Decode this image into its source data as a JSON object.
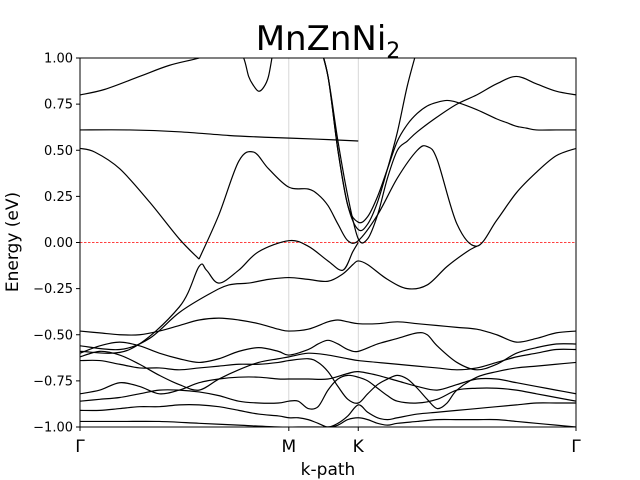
{
  "chart_data": {
    "type": "line",
    "title": "MnZnNi",
    "title_subscript": "2",
    "xlabel": "k-path",
    "ylabel": "Energy (eV)",
    "ylim": [
      -1.0,
      1.0
    ],
    "yticks": [
      -1.0,
      -0.75,
      -0.5,
      -0.25,
      0.0,
      0.25,
      0.5,
      0.75,
      1.0
    ],
    "ytick_labels": [
      "−1.00",
      "−0.75",
      "−0.50",
      "−0.25",
      "0.00",
      "0.25",
      "0.50",
      "0.75",
      "1.00"
    ],
    "xlim": [
      0,
      100
    ],
    "kpoints": [
      {
        "label": "Γ",
        "x": 0
      },
      {
        "label": "M",
        "x": 42.1
      },
      {
        "label": "K",
        "x": 56.1
      },
      {
        "label": "Γ",
        "x": 100
      }
    ],
    "fermi_level": 0.0,
    "fermi_color": "#ff0000",
    "band_color": "#000000",
    "vline_color": "#cccccc",
    "series": [
      {
        "x": [
          0,
          5,
          12,
          18,
          24,
          30,
          34
        ],
        "y": [
          0.8,
          0.83,
          0.9,
          0.96,
          1.0,
          1.05,
          1.1
        ]
      },
      {
        "x": [
          0,
          10,
          20,
          30,
          38,
          48,
          56.1
        ],
        "y": [
          0.61,
          0.61,
          0.6,
          0.58,
          0.57,
          0.56,
          0.55
        ]
      },
      {
        "x": [
          31,
          33,
          34,
          35,
          36,
          37,
          38,
          39
        ],
        "y": [
          1.1,
          1.0,
          0.9,
          0.85,
          0.82,
          0.84,
          0.9,
          1.05
        ]
      },
      {
        "x": [
          0,
          3,
          8,
          14,
          20,
          24
        ],
        "y": [
          0.51,
          0.49,
          0.4,
          0.22,
          0.02,
          -0.09
        ]
      },
      {
        "x": [
          24,
          28,
          32,
          35,
          38,
          42.1,
          46,
          48,
          50,
          52,
          54,
          56.1,
          60,
          64,
          68,
          70,
          72,
          76,
          80,
          84,
          88,
          92,
          96,
          100
        ],
        "y": [
          -0.09,
          0.15,
          0.44,
          0.49,
          0.4,
          0.3,
          0.29,
          0.26,
          0.2,
          0.1,
          0.01,
          0.01,
          0.15,
          0.35,
          0.5,
          0.52,
          0.45,
          0.1,
          -0.02,
          0.12,
          0.27,
          0.38,
          0.47,
          0.51
        ]
      },
      {
        "x": [
          0,
          10,
          20,
          24,
          25.5,
          28,
          32,
          36,
          42.1,
          46,
          50,
          53,
          55,
          56.1
        ],
        "y": [
          -0.59,
          -0.58,
          -0.35,
          -0.13,
          -0.15,
          -0.22,
          -0.15,
          -0.05,
          0.01,
          -0.02,
          -0.1,
          -0.15,
          -0.05,
          0.0
        ]
      },
      {
        "x": [
          0,
          8,
          14,
          20,
          26,
          30,
          34,
          38,
          42.1,
          46,
          50,
          53,
          55,
          56.1,
          58,
          62,
          66,
          70,
          74,
          78,
          80
        ],
        "y": [
          -0.56,
          -0.58,
          -0.52,
          -0.38,
          -0.28,
          -0.23,
          -0.22,
          -0.2,
          -0.19,
          -0.2,
          -0.21,
          -0.17,
          -0.12,
          -0.1,
          -0.12,
          -0.2,
          -0.25,
          -0.23,
          -0.13,
          -0.05,
          -0.02
        ]
      },
      {
        "x": [
          0,
          4,
          8,
          12,
          16,
          20,
          24,
          28,
          32,
          36,
          40,
          42.1,
          46,
          50,
          52,
          54,
          56.1,
          60,
          64,
          68,
          72,
          76,
          80,
          84,
          88,
          92,
          96,
          100
        ],
        "y": [
          -0.48,
          -0.49,
          -0.5,
          -0.5,
          -0.48,
          -0.45,
          -0.42,
          -0.41,
          -0.42,
          -0.44,
          -0.47,
          -0.48,
          -0.47,
          -0.43,
          -0.42,
          -0.43,
          -0.44,
          -0.44,
          -0.43,
          -0.44,
          -0.45,
          -0.46,
          -0.47,
          -0.5,
          -0.54,
          -0.52,
          -0.49,
          -0.48
        ]
      },
      {
        "x": [
          48,
          50,
          52,
          54,
          56.1,
          58,
          60,
          62,
          64,
          66,
          68,
          70,
          72,
          74,
          76,
          80,
          84,
          86,
          88,
          90,
          92,
          96,
          100
        ],
        "y": [
          1.1,
          0.9,
          0.5,
          0.2,
          0.11,
          0.14,
          0.25,
          0.4,
          0.55,
          0.64,
          0.7,
          0.74,
          0.76,
          0.77,
          0.76,
          0.72,
          0.67,
          0.65,
          0.63,
          0.62,
          0.61,
          0.61,
          0.61
        ]
      },
      {
        "x": [
          48,
          50,
          52,
          54,
          56.1,
          58,
          60,
          62,
          64,
          66,
          68
        ],
        "y": [
          1.1,
          0.9,
          0.5,
          0.2,
          0.07,
          0.1,
          0.22,
          0.4,
          0.6,
          0.85,
          1.05
        ]
      },
      {
        "x": [
          48,
          50,
          52,
          54,
          56.1,
          58,
          60,
          62,
          64,
          66,
          68,
          72,
          76,
          80,
          84,
          88,
          92,
          96,
          100
        ],
        "y": [
          1.1,
          0.9,
          0.55,
          0.25,
          0.02,
          0.02,
          0.15,
          0.35,
          0.5,
          0.55,
          0.6,
          0.68,
          0.75,
          0.8,
          0.86,
          0.9,
          0.86,
          0.82,
          0.8
        ]
      },
      {
        "x": [
          0,
          4,
          8,
          12,
          16,
          20,
          24,
          28,
          32,
          36,
          40,
          42.1,
          46,
          48,
          50,
          52,
          54,
          56.1,
          60,
          64,
          68,
          70,
          72,
          76,
          80,
          84,
          88,
          92,
          96,
          100
        ],
        "y": [
          -0.6,
          -0.56,
          -0.54,
          -0.56,
          -0.6,
          -0.63,
          -0.65,
          -0.63,
          -0.59,
          -0.57,
          -0.59,
          -0.61,
          -0.58,
          -0.55,
          -0.53,
          -0.55,
          -0.58,
          -0.59,
          -0.55,
          -0.52,
          -0.49,
          -0.5,
          -0.56,
          -0.65,
          -0.69,
          -0.66,
          -0.6,
          -0.57,
          -0.55,
          -0.55
        ]
      },
      {
        "x": [
          0,
          4,
          8,
          12,
          16,
          20,
          24,
          28,
          32,
          36,
          40,
          42.1,
          46,
          50,
          54,
          56.1,
          60,
          64,
          68,
          72,
          76,
          80,
          84,
          88,
          92,
          96,
          100
        ],
        "y": [
          -0.62,
          -0.59,
          -0.61,
          -0.66,
          -0.72,
          -0.77,
          -0.8,
          -0.74,
          -0.69,
          -0.65,
          -0.63,
          -0.62,
          -0.6,
          -0.61,
          -0.63,
          -0.64,
          -0.65,
          -0.66,
          -0.67,
          -0.68,
          -0.69,
          -0.68,
          -0.65,
          -0.62,
          -0.6,
          -0.58,
          -0.58
        ]
      },
      {
        "x": [
          0,
          4,
          8,
          12,
          16,
          20,
          24,
          28,
          32,
          36,
          40,
          42.1,
          46,
          48,
          50,
          52,
          54,
          56.1,
          58,
          60,
          62,
          64,
          66,
          68,
          70,
          72,
          74,
          76,
          80,
          84,
          88,
          92,
          96,
          100
        ],
        "y": [
          -0.64,
          -0.64,
          -0.66,
          -0.68,
          -0.68,
          -0.69,
          -0.68,
          -0.67,
          -0.66,
          -0.66,
          -0.65,
          -0.64,
          -0.63,
          -0.65,
          -0.7,
          -0.78,
          -0.85,
          -0.87,
          -0.82,
          -0.77,
          -0.74,
          -0.72,
          -0.74,
          -0.79,
          -0.85,
          -0.9,
          -0.87,
          -0.8,
          -0.73,
          -0.7,
          -0.68,
          -0.67,
          -0.66,
          -0.65
        ]
      },
      {
        "x": [
          0,
          4,
          8,
          12,
          16,
          20,
          24,
          28,
          32,
          36,
          40,
          42.1,
          46,
          50,
          54,
          56.1,
          60,
          64,
          68,
          72,
          76,
          80,
          84,
          88,
          92,
          96,
          100
        ],
        "y": [
          -0.82,
          -0.8,
          -0.76,
          -0.78,
          -0.82,
          -0.8,
          -0.76,
          -0.74,
          -0.73,
          -0.73,
          -0.74,
          -0.74,
          -0.74,
          -0.74,
          -0.71,
          -0.7,
          -0.72,
          -0.75,
          -0.78,
          -0.8,
          -0.77,
          -0.74,
          -0.74,
          -0.76,
          -0.78,
          -0.8,
          -0.82
        ]
      },
      {
        "x": [
          0,
          4,
          8,
          12,
          16,
          20,
          24,
          28,
          32,
          36,
          40,
          42.1,
          44,
          46,
          48,
          50,
          52,
          54,
          56.1,
          58,
          60,
          62,
          64,
          68,
          72,
          76,
          80,
          84,
          88,
          92,
          96,
          100
        ],
        "y": [
          -0.86,
          -0.85,
          -0.84,
          -0.82,
          -0.8,
          -0.8,
          -0.81,
          -0.83,
          -0.86,
          -0.87,
          -0.87,
          -0.86,
          -0.86,
          -0.9,
          -0.89,
          -0.8,
          -0.74,
          -0.72,
          -0.73,
          -0.75,
          -0.79,
          -0.83,
          -0.86,
          -0.87,
          -0.85,
          -0.8,
          -0.79,
          -0.79,
          -0.8,
          -0.82,
          -0.84,
          -0.86
        ]
      },
      {
        "x": [
          0,
          4,
          8,
          12,
          16,
          20,
          24,
          28,
          32,
          36,
          40,
          42.1,
          44,
          46,
          48,
          50,
          52,
          54,
          56.1,
          58,
          60,
          62,
          64,
          68,
          72,
          76,
          80,
          84,
          88,
          92,
          96,
          100
        ],
        "y": [
          -0.91,
          -0.91,
          -0.9,
          -0.89,
          -0.89,
          -0.88,
          -0.88,
          -0.89,
          -0.91,
          -0.93,
          -0.94,
          -0.95,
          -0.95,
          -0.96,
          -0.98,
          -1.0,
          -0.98,
          -0.94,
          -0.88,
          -0.92,
          -0.95,
          -0.96,
          -0.95,
          -0.93,
          -0.92,
          -0.91,
          -0.9,
          -0.89,
          -0.88,
          -0.87,
          -0.87,
          -0.87
        ]
      },
      {
        "x": [
          0,
          8,
          16,
          24,
          32,
          40,
          44,
          48,
          50,
          52,
          54,
          56.1,
          58,
          60,
          62,
          64,
          68,
          72,
          76,
          80,
          84,
          88,
          92,
          96,
          100
        ],
        "y": [
          -0.97,
          -0.97,
          -0.97,
          -0.98,
          -0.99,
          -1.0,
          -1.0,
          -1.0,
          -1.0,
          -0.99,
          -0.96,
          -0.95,
          -0.96,
          -0.98,
          -0.99,
          -0.98,
          -0.97,
          -0.96,
          -0.96,
          -0.96,
          -0.96,
          -0.97,
          -0.98,
          -0.99,
          -1.0
        ]
      }
    ]
  }
}
